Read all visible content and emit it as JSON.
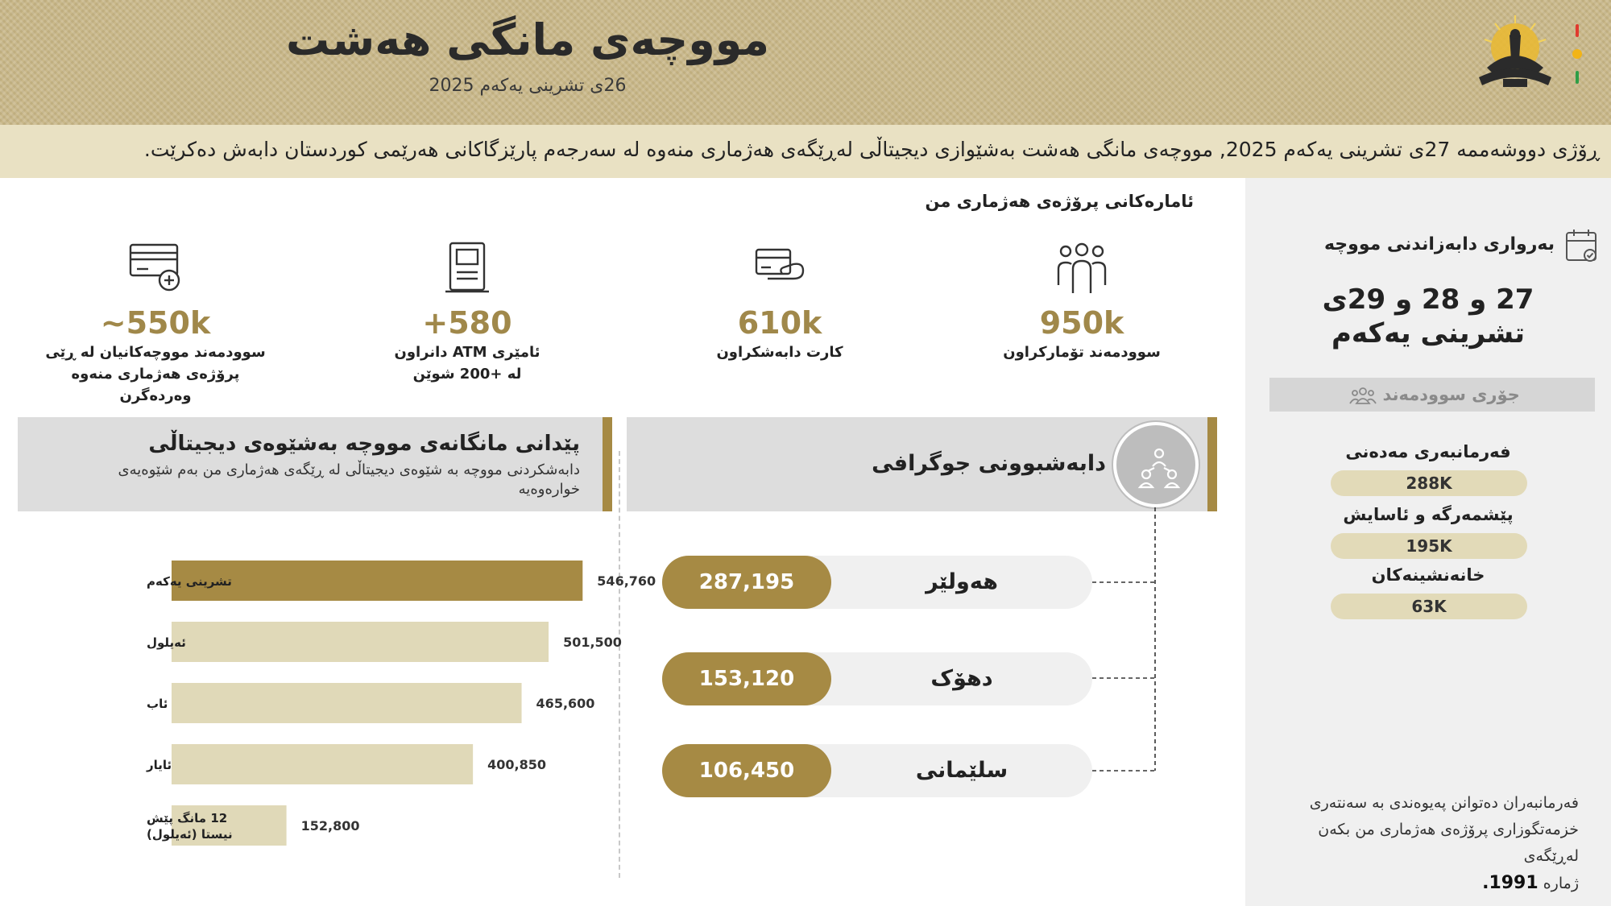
{
  "header": {
    "title": "مووچەی مانگی هەشت",
    "subtitle": "26ی تشرینی یەکەم 2025"
  },
  "announcement": "ڕۆژی دووشەممە 27ی تشرینی یەکەم 2025, مووچەی مانگی هەشت بەشێوازی دیجیتاڵی لەڕێگەی هەژماری منەوە لە سەرجەم پارێزگاکانی هەرێمی کوردستان دابەش دەکرێت.",
  "sidebar": {
    "distribution_heading": "بەرواری دابەزاندنی مووچە",
    "dates_line1": "27 و 28 و 29ی",
    "dates_line2": "تشرینی یەکەم",
    "type_heading": "جۆری سوودمەند",
    "categories": [
      {
        "name": "فەرمانبەری مەدەنی",
        "value": "288K"
      },
      {
        "name": "پێشمەرگە و ئاسایش",
        "value": "195K"
      },
      {
        "name": "خانەنشینەکان",
        "value": "63K"
      }
    ],
    "note_line1": "فەرمانبەران دەتوانن پەیوەندی بە سەنتەری",
    "note_line2": "خزمەتگوزاری پرۆژەی هەژماری من بکەن لەڕێگەی",
    "note_prefix": "ژمارە",
    "note_number": "1991."
  },
  "stats": {
    "title": "ئامارەکانی پرۆژەی هەژماری من",
    "items": [
      {
        "icon": "people-group-icon",
        "value": "950k",
        "label": "سوودمەند تۆمارکراون"
      },
      {
        "icon": "card-hand-icon",
        "value": "610k",
        "label": "کارت دابەشکراون"
      },
      {
        "icon": "atm-icon",
        "value": "+580",
        "label_line1": "ئامێری ATM دانراون",
        "label_line2": "لە +200 شوێن"
      },
      {
        "icon": "card-add-icon",
        "value": "~550k",
        "label_line1": "سوودمەند مووچەکانیان لە ڕێی",
        "label_line2": "پرۆژەی هەژماری منەوە",
        "label_line3": "وەردەگرن"
      }
    ]
  },
  "digital_section": {
    "title": "پێدانی مانگانەی مووچە بەشێوەی دیجیتاڵی",
    "description": "دابەشکردنی مووچە بە شێوەی دیجیتاڵی لە ڕێگەی هەژماری من بەم شێوەیەی خوارەوەیە"
  },
  "geo_section": {
    "title": "دابەشبوونی جوگرافی",
    "regions": [
      {
        "name": "هەولێر",
        "value": "287,195"
      },
      {
        "name": "دهۆک",
        "value": "153,120"
      },
      {
        "name": "سلێمانی",
        "value": "106,450"
      }
    ]
  },
  "chart_data": {
    "type": "bar",
    "orientation": "horizontal",
    "categories": [
      "تشرینی یەکەم",
      "ئەیلول",
      "ئاب",
      "ئایار",
      "12 مانگ پێش نیستا (ئەیلول)"
    ],
    "category_lines": [
      [
        "تشرینی یەکەم"
      ],
      [
        "ئەیلول"
      ],
      [
        "ئاب"
      ],
      [
        "ئایار"
      ],
      [
        "12 مانگ پێش",
        "نیستا (ئەیلول)"
      ]
    ],
    "values": [
      546760,
      501500,
      465600,
      400850,
      152800
    ],
    "value_labels": [
      "546,760",
      "501,500",
      "465,600",
      "400,850",
      "152,800"
    ],
    "highlight_index": 0,
    "colors": {
      "highlight": "#a68a44",
      "normal": "#e0d9b8"
    },
    "xlim": [
      0,
      600000
    ]
  },
  "colors": {
    "gold": "#a68a44",
    "header_bg": "#c9b88a",
    "band_bg": "#e9e1c3",
    "pill_bg": "#e2dab8",
    "flag_red": "#e03a2e",
    "flag_yellow": "#f2b416",
    "flag_green": "#2e9e46"
  }
}
